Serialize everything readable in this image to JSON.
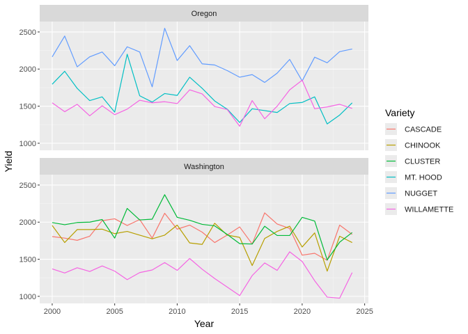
{
  "chart_data": {
    "type": "line",
    "xlabel": "Year",
    "ylabel": "Yield",
    "legend_title": "Variety",
    "legend_position": "right",
    "grid": true,
    "xlim": [
      1999,
      2025.3
    ],
    "x_ticks": [
      2000,
      2005,
      2010,
      2015,
      2020,
      2025
    ],
    "ylim": [
      905,
      2640
    ],
    "y_ticks": [
      1000,
      1500,
      2000,
      2500
    ],
    "x": [
      2000,
      2001,
      2002,
      2003,
      2004,
      2005,
      2006,
      2007,
      2008,
      2009,
      2010,
      2011,
      2012,
      2013,
      2014,
      2015,
      2016,
      2017,
      2018,
      2019,
      2020,
      2021,
      2022,
      2023,
      2024
    ],
    "panels": [
      {
        "name": "Oregon",
        "series": [
          {
            "name": "MT. HOOD",
            "color": "#00BFC4",
            "values": [
              1795,
              1970,
              1740,
              1575,
              1625,
              1420,
              2200,
              1640,
              1555,
              1670,
              1645,
              1890,
              1740,
              1570,
              1460,
              1280,
              1465,
              1440,
              1415,
              1535,
              1550,
              1625,
              1260,
              1380,
              1545
            ]
          },
          {
            "name": "NUGGET",
            "color": "#619CFF",
            "values": [
              2165,
              2445,
              2030,
              2165,
              2230,
              2045,
              2300,
              2230,
              1760,
              2550,
              2115,
              2315,
              2070,
              2055,
              1980,
              1890,
              1925,
              1820,
              1945,
              2130,
              1840,
              2160,
              2085,
              2235,
              2270
            ]
          },
          {
            "name": "WILLAMETTE",
            "color": "#F564E3",
            "values": [
              1545,
              1425,
              1525,
              1370,
              1505,
              1385,
              1460,
              1580,
              1545,
              1560,
              1535,
              1720,
              1665,
              1495,
              1455,
              1230,
              1575,
              1330,
              1500,
              1720,
              1850,
              1465,
              1490,
              1525,
              1470
            ]
          }
        ]
      },
      {
        "name": "Washington",
        "series": [
          {
            "name": "CASCADE",
            "color": "#F8766D",
            "values": [
              1805,
              1785,
              1755,
              1810,
              2020,
              2045,
              1955,
              2035,
              1785,
              2120,
              1905,
              1960,
              1865,
              1725,
              1825,
              1935,
              1705,
              2125,
              1975,
              1915,
              1555,
              1580,
              1485,
              1960,
              1835
            ]
          },
          {
            "name": "CHINOOK",
            "color": "#B79F00",
            "values": [
              1955,
              1725,
              1900,
              1900,
              1905,
              1845,
              1875,
              1825,
              1775,
              1825,
              1960,
              1720,
              1700,
              1985,
              1825,
              1795,
              1415,
              1780,
              1875,
              1945,
              1665,
              1855,
              1340,
              1810,
              1725
            ]
          },
          {
            "name": "CLUSTER",
            "color": "#00BA38",
            "values": [
              1995,
              1965,
              1995,
              2000,
              2035,
              1785,
              2185,
              2030,
              2040,
              2370,
              2065,
              2025,
              1970,
              1950,
              1835,
              1710,
              1705,
              1945,
              1820,
              1820,
              2065,
              2015,
              1490,
              1730,
              1860
            ]
          },
          {
            "name": "WILLAMETTE",
            "color": "#F564E3",
            "values": [
              1370,
              1315,
              1385,
              1335,
              1410,
              1340,
              1225,
              1320,
              1355,
              1455,
              1350,
              1510,
              1365,
              1240,
              1125,
              1010,
              1280,
              1450,
              1350,
              1600,
              1470,
              1210,
              990,
              975,
              1320
            ]
          }
        ]
      }
    ],
    "legend": [
      {
        "name": "CASCADE",
        "color": "#F8766D"
      },
      {
        "name": "CHINOOK",
        "color": "#B79F00"
      },
      {
        "name": "CLUSTER",
        "color": "#00BA38"
      },
      {
        "name": "MT. HOOD",
        "color": "#00BFC4"
      },
      {
        "name": "NUGGET",
        "color": "#619CFF"
      },
      {
        "name": "WILLAMETTE",
        "color": "#F564E3"
      }
    ]
  }
}
